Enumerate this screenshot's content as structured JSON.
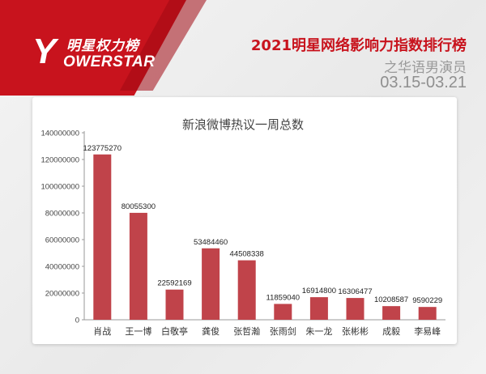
{
  "brand": {
    "logo_mark": "Y",
    "logo_cn": "明星权力榜",
    "logo_en": "OWERSTAR"
  },
  "header": {
    "title": "2021明星网络影响力指数排行榜",
    "subtitle": "之华语男演员",
    "date_range": "03.15-03.21"
  },
  "colors": {
    "accent": "#c8131d",
    "bar": "#c0434a",
    "axis": "#999999"
  },
  "chart_data": {
    "type": "bar",
    "title": "新浪微博热议一周总数",
    "xlabel": "",
    "ylabel": "",
    "categories": [
      "肖战",
      "王一博",
      "白敬亭",
      "龚俊",
      "张哲瀚",
      "张雨剑",
      "朱一龙",
      "张彬彬",
      "成毅",
      "李易峰"
    ],
    "values": [
      123775270,
      80055300,
      22592169,
      53484460,
      44508338,
      11859040,
      16914800,
      16306477,
      10208587,
      9590229
    ],
    "ylim": [
      0,
      140000000
    ],
    "yticks": [
      0,
      20000000,
      40000000,
      60000000,
      80000000,
      100000000,
      120000000,
      140000000
    ],
    "ytick_labels": [
      "0",
      "20000000",
      "40000000",
      "60000000",
      "80000000",
      "100000000",
      "120000000",
      "140000000"
    ],
    "data_labels": [
      "123775270",
      "80055300",
      "22592169",
      "53484460",
      "44508338",
      "11859040",
      "16914800",
      "16306477",
      "10208587",
      "9590229"
    ],
    "grid": false,
    "legend": "none"
  }
}
